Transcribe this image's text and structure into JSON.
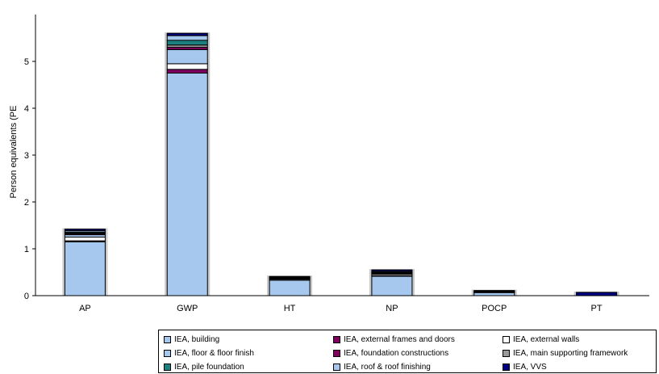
{
  "chart_data": {
    "type": "bar",
    "stacked": true,
    "ylabel": "Person equivalents (PE",
    "xlabel": "",
    "ylim": [
      0,
      6
    ],
    "yticks": [
      "0",
      "1",
      "2",
      "3",
      "4",
      "5"
    ],
    "grid": false,
    "legend_position": "bottom",
    "categories": [
      "AP",
      "GWP",
      "HT",
      "NP",
      "POCP",
      "PT"
    ],
    "series": [
      {
        "name": "IEA, building",
        "color": "#a6c8ee",
        "values": [
          1.15,
          4.75,
          0.33,
          0.42,
          0.07,
          0.0
        ]
      },
      {
        "name": "IEA, external frames and doors",
        "color": "#800060",
        "values": [
          0.02,
          0.08,
          0.0,
          0.01,
          0.0,
          0.0
        ]
      },
      {
        "name": "IEA, external walls",
        "color": "#ffffff",
        "values": [
          0.08,
          0.12,
          0.02,
          0.03,
          0.01,
          0.0
        ]
      },
      {
        "name": "IEA, floor & floor finish",
        "color": "#a6c8ee",
        "values": [
          0.05,
          0.3,
          0.02,
          0.02,
          0.01,
          0.0
        ]
      },
      {
        "name": "IEA, foundation constructions",
        "color": "#800060",
        "values": [
          0.02,
          0.05,
          0.01,
          0.01,
          0.0,
          0.0
        ]
      },
      {
        "name": "IEA, main supporting framework",
        "color": "#999999",
        "values": [
          0.02,
          0.05,
          0.01,
          0.01,
          0.0,
          0.0
        ]
      },
      {
        "name": "IEA, pile foundation",
        "color": "#1a8080",
        "values": [
          0.02,
          0.1,
          0.0,
          0.0,
          0.0,
          0.0
        ]
      },
      {
        "name": "IEA, roof & roof finishing",
        "color": "#a6c8ee",
        "values": [
          0.03,
          0.1,
          0.01,
          0.02,
          0.01,
          0.0
        ]
      },
      {
        "name": "IEA, VVS",
        "color": "#000080",
        "values": [
          0.03,
          0.05,
          0.01,
          0.03,
          0.01,
          0.07
        ]
      }
    ]
  }
}
